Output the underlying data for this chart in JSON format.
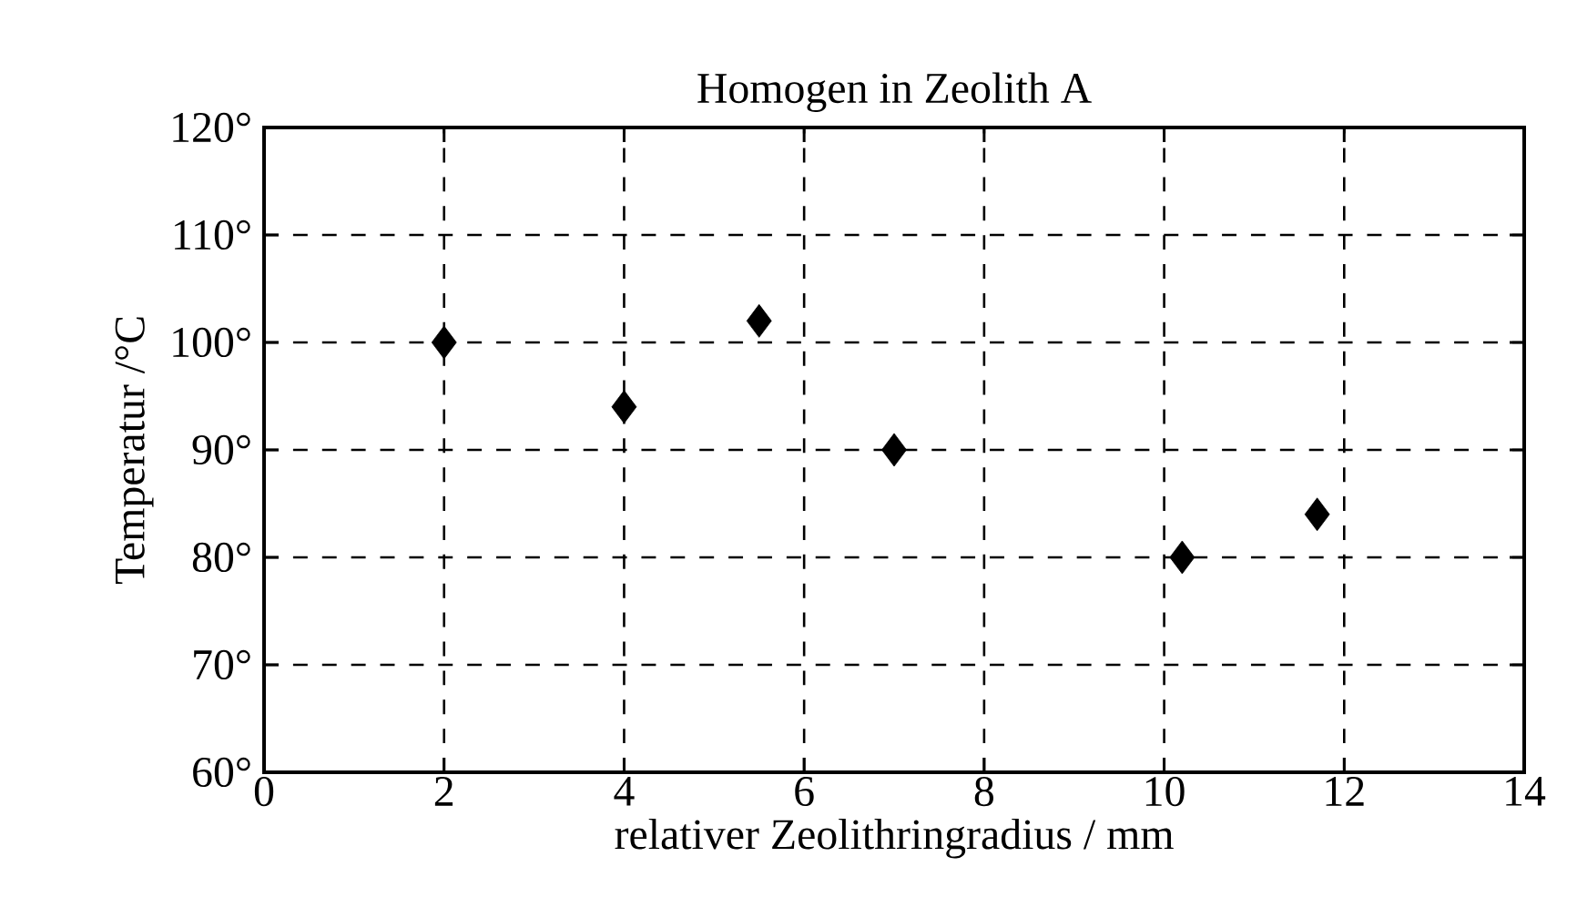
{
  "chart_data": {
    "type": "scatter",
    "title": "Homogen in Zeolith A",
    "xlabel": "relativer Zeolithringradius / mm",
    "ylabel": "Temperatur /°C",
    "x": [
      2,
      4,
      5.5,
      7,
      10.2,
      11.7
    ],
    "values": [
      100,
      94,
      102,
      90,
      80,
      84
    ],
    "color": "#000000",
    "marker": "diamond",
    "grid": true,
    "xlim": [
      0,
      14
    ],
    "xticks": [
      0,
      2,
      4,
      6,
      8,
      10,
      12,
      14
    ],
    "ylim": [
      60,
      120
    ],
    "yticks": [
      {
        "value": 60,
        "label": "60°"
      },
      {
        "value": 70,
        "label": "70°"
      },
      {
        "value": 80,
        "label": "80°"
      },
      {
        "value": 90,
        "label": "90°"
      },
      {
        "value": 100,
        "label": "100°"
      },
      {
        "value": 110,
        "label": "110°"
      },
      {
        "value": 120,
        "label": "120°"
      }
    ]
  }
}
